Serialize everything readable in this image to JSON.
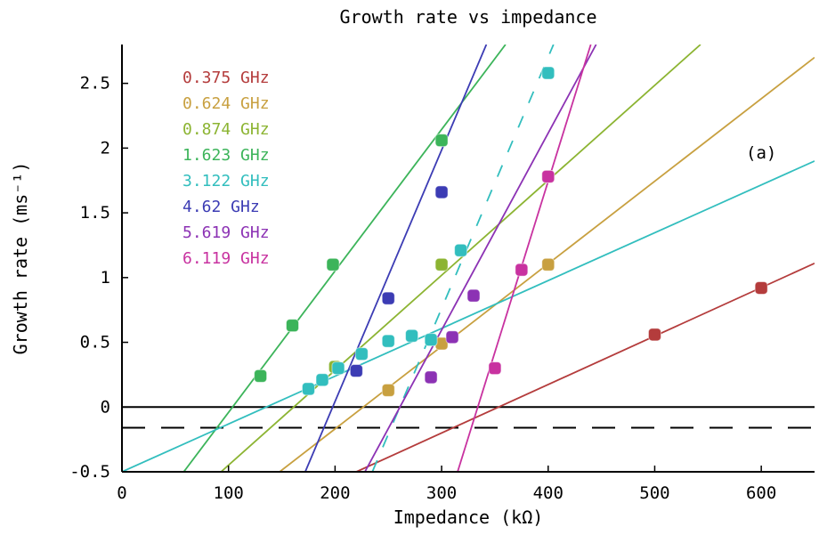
{
  "chart_data": {
    "type": "line",
    "title": "Growth rate vs impedance",
    "xlabel": "Impedance (kΩ)",
    "ylabel": "Growth rate (ms⁻¹)",
    "annotation": "(a)",
    "xlim": [
      0,
      650
    ],
    "ylim": [
      -0.5,
      2.8
    ],
    "xticks": [
      0,
      100,
      200,
      300,
      400,
      500,
      600
    ],
    "yticks": [
      -0.5,
      0,
      0.5,
      1,
      1.5,
      2,
      2.5
    ],
    "xtick_labels": [
      "0",
      "100",
      "200",
      "300",
      "400",
      "500",
      "600"
    ],
    "ytick_labels": [
      "-0.5",
      "0",
      "0.5",
      "1",
      "1.5",
      "2",
      "2.5"
    ],
    "legend_position": "top-left",
    "grid": false,
    "reference_lines": [
      {
        "y": 0,
        "style": "solid",
        "color": "#000000"
      },
      {
        "y": -0.16,
        "style": "dashed",
        "color": "#000000"
      }
    ],
    "series": [
      {
        "name": "0.375 GHz",
        "color": "#b43c3c",
        "points": [
          [
            500,
            0.56
          ],
          [
            600,
            0.92
          ]
        ],
        "fit": {
          "x1": 220,
          "y1": -0.5,
          "x2": 650,
          "y2": 1.11,
          "style": "solid"
        }
      },
      {
        "name": "0.624 GHz",
        "color": "#c8a040",
        "points": [
          [
            250,
            0.13
          ],
          [
            300,
            0.49
          ],
          [
            400,
            1.1
          ]
        ],
        "fit": {
          "x1": 148,
          "y1": -0.5,
          "x2": 650,
          "y2": 2.7,
          "style": "solid"
        }
      },
      {
        "name": "0.874 GHz",
        "color": "#8cb432",
        "points": [
          [
            200,
            0.31
          ],
          [
            300,
            1.1
          ],
          [
            400,
            1.78
          ]
        ],
        "fit": {
          "x1": 93,
          "y1": -0.5,
          "x2": 543,
          "y2": 2.8,
          "style": "solid"
        }
      },
      {
        "name": "1.623 GHz",
        "color": "#3cb45a",
        "points": [
          [
            130,
            0.24
          ],
          [
            160,
            0.63
          ],
          [
            198,
            1.1
          ],
          [
            300,
            2.06
          ]
        ],
        "fit": {
          "x1": 58,
          "y1": -0.5,
          "x2": 360,
          "y2": 2.8,
          "style": "solid"
        }
      },
      {
        "name": "3.122 GHz",
        "color": "#32bebe",
        "points": [
          [
            175,
            0.14
          ],
          [
            188,
            0.21
          ],
          [
            203,
            0.3
          ],
          [
            225,
            0.41
          ],
          [
            250,
            0.51
          ],
          [
            272,
            0.55
          ],
          [
            290,
            0.52
          ],
          [
            318,
            1.21
          ],
          [
            400,
            2.58
          ]
        ],
        "fit": {
          "x1": 0,
          "y1": -0.5,
          "x2": 650,
          "y2": 1.9,
          "style": "solid"
        },
        "fit2": {
          "x1": 235,
          "y1": -0.5,
          "x2": 405,
          "y2": 2.8,
          "style": "dashed"
        }
      },
      {
        "name": "4.62 GHz",
        "color": "#3c3cb4",
        "points": [
          [
            220,
            0.28
          ],
          [
            250,
            0.84
          ],
          [
            300,
            1.66
          ]
        ],
        "fit": {
          "x1": 172,
          "y1": -0.5,
          "x2": 342,
          "y2": 2.8,
          "style": "solid"
        }
      },
      {
        "name": "5.619 GHz",
        "color": "#8c32b4",
        "points": [
          [
            290,
            0.23
          ],
          [
            310,
            0.54
          ],
          [
            330,
            0.86
          ]
        ],
        "fit": {
          "x1": 228,
          "y1": -0.5,
          "x2": 445,
          "y2": 2.8,
          "style": "solid"
        }
      },
      {
        "name": "6.119 GHz",
        "color": "#c832a0",
        "points": [
          [
            350,
            0.3
          ],
          [
            375,
            1.06
          ],
          [
            400,
            1.78
          ]
        ],
        "fit": {
          "x1": 315,
          "y1": -0.5,
          "x2": 440,
          "y2": 2.8,
          "style": "solid"
        }
      }
    ]
  }
}
